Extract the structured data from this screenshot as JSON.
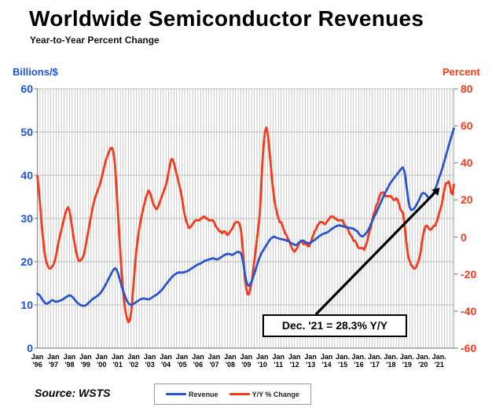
{
  "title": "Worldwide Semiconductor Revenues",
  "subtitle": "Year-to-Year Percent Change",
  "source": "Source: WSTS",
  "annotation": {
    "text": "Dec. '21 = 28.3% Y/Y"
  },
  "colors": {
    "revenue_blue": "#2b55cc",
    "yoy_red": "#f43b1c",
    "left_label_blue": "#1d53e0",
    "right_label_red": "#fa3a1e",
    "grid_gray": "#b3b3b3",
    "axis_gray": "#8a8a8a",
    "arrow_black": "#000000"
  },
  "legend": [
    {
      "label": "Revenue",
      "color": "#2b55cc"
    },
    {
      "label": "Y/Y % Change",
      "color": "#f43b1c"
    }
  ],
  "chart_data": {
    "type": "line",
    "title": "Worldwide Semiconductor Revenues",
    "subtitle": "Year-to-Year Percent Change",
    "x_interval": "monthly",
    "x_start": "1996-01",
    "x_end": "2021-12",
    "grid": "on",
    "legend_position": "bottom-center",
    "left_axis": {
      "label": "Billions/$",
      "min": 0,
      "max": 60,
      "ticks": [
        60,
        50,
        40,
        30,
        20,
        10,
        0
      ]
    },
    "right_axis": {
      "label": "Percent",
      "min": -60,
      "max": 80,
      "ticks": [
        80,
        60,
        40,
        20,
        0,
        -20,
        -40,
        -60
      ]
    },
    "x_tick_labels": [
      {
        "month": "Jan",
        "year": "'96"
      },
      {
        "month": "Jan",
        "year": "'97"
      },
      {
        "month": "Jan",
        "year": "'98"
      },
      {
        "month": "Jan",
        "year": "'99"
      },
      {
        "month": "Jan",
        "year": "'00"
      },
      {
        "month": "Jan",
        "year": "'01"
      },
      {
        "month": "Jan",
        "year": "'02"
      },
      {
        "month": "Jan",
        "year": "'03"
      },
      {
        "month": "Jan",
        "year": "'04"
      },
      {
        "month": "Jan",
        "year": "'05"
      },
      {
        "month": "Jan",
        "year": "'06"
      },
      {
        "month": "Jan",
        "year": "'07"
      },
      {
        "month": "Jan",
        "year": "'08"
      },
      {
        "month": "Jan",
        "year": "'09"
      },
      {
        "month": "Jan",
        "year": "'10"
      },
      {
        "month": "Jan",
        "year": "'11"
      },
      {
        "month": "Jan",
        "year": "'12"
      },
      {
        "month": "Jan",
        "year": "'13"
      },
      {
        "month": "Jan",
        "year": "'14"
      },
      {
        "month": "Jan.",
        "year": "'15"
      },
      {
        "month": "Jan.",
        "year": "'16"
      },
      {
        "month": "Jan.",
        "year": "'17"
      },
      {
        "month": "Jan.",
        "year": "'18"
      },
      {
        "month": "Jan.",
        "year": "'19"
      },
      {
        "month": "Jan.",
        "year": "'20"
      },
      {
        "month": "Jan.",
        "year": "'21"
      }
    ],
    "annotation": {
      "text": "Dec. '21 = 28.3% Y/Y",
      "points_to": {
        "x": "2021-12",
        "series": "Y/Y % Change",
        "value": 28.3
      }
    },
    "series": [
      {
        "name": "Revenue",
        "axis": "left",
        "units": "US$ billions per month (3-mo avg)",
        "color": "#2b55cc",
        "values": [
          12.6,
          12.4,
          12.1,
          11.6,
          11.1,
          10.7,
          10.4,
          10.3,
          10.4,
          10.6,
          10.9,
          11.1,
          11.0,
          10.8,
          10.7,
          10.8,
          10.9,
          11.0,
          11.1,
          11.3,
          11.5,
          11.7,
          11.9,
          12.1,
          12.2,
          12.1,
          11.9,
          11.6,
          11.2,
          10.8,
          10.5,
          10.2,
          10.0,
          9.9,
          9.8,
          9.8,
          9.9,
          10.1,
          10.4,
          10.7,
          11.0,
          11.3,
          11.5,
          11.7,
          11.9,
          12.1,
          12.4,
          12.7,
          13.1,
          13.6,
          14.1,
          14.7,
          15.3,
          15.9,
          16.5,
          17.1,
          17.7,
          18.2,
          18.5,
          18.3,
          17.5,
          16.5,
          15.4,
          14.3,
          13.3,
          12.4,
          11.6,
          10.9,
          10.4,
          10.1,
          10.0,
          10.1,
          10.3,
          10.5,
          10.7,
          10.9,
          11.1,
          11.3,
          11.4,
          11.5,
          11.5,
          11.4,
          11.3,
          11.3,
          11.4,
          11.6,
          11.8,
          12.0,
          12.2,
          12.4,
          12.6,
          12.9,
          13.2,
          13.5,
          13.9,
          14.3,
          14.7,
          15.1,
          15.5,
          15.9,
          16.3,
          16.6,
          16.9,
          17.1,
          17.3,
          17.5,
          17.5,
          17.5,
          17.5,
          17.5,
          17.6,
          17.7,
          17.8,
          18.0,
          18.2,
          18.4,
          18.6,
          18.8,
          19.0,
          19.2,
          19.4,
          19.5,
          19.6,
          19.8,
          20.0,
          20.2,
          20.3,
          20.4,
          20.5,
          20.6,
          20.7,
          20.8,
          20.7,
          20.6,
          20.5,
          20.6,
          20.8,
          21.0,
          21.2,
          21.4,
          21.6,
          21.7,
          21.8,
          21.8,
          21.7,
          21.6,
          21.6,
          21.8,
          22.0,
          22.2,
          22.3,
          22.2,
          21.9,
          21.0,
          19.3,
          17.2,
          15.5,
          14.6,
          14.4,
          14.8,
          15.5,
          16.3,
          17.2,
          18.2,
          19.2,
          20.2,
          21.0,
          21.8,
          22.3,
          22.8,
          23.3,
          23.8,
          24.3,
          24.8,
          25.2,
          25.5,
          25.7,
          25.8,
          25.6,
          25.5,
          25.4,
          25.3,
          25.2,
          25.2,
          25.1,
          25.0,
          24.9,
          24.8,
          24.6,
          24.4,
          24.2,
          24.1,
          23.9,
          23.8,
          24.0,
          24.3,
          24.6,
          24.8,
          24.9,
          24.8,
          24.6,
          24.4,
          24.2,
          24.3,
          24.4,
          24.6,
          24.8,
          25.0,
          25.3,
          25.5,
          25.8,
          26.0,
          26.2,
          26.4,
          26.5,
          26.6,
          26.7,
          26.9,
          27.1,
          27.4,
          27.6,
          27.8,
          28.0,
          28.2,
          28.3,
          28.4,
          28.4,
          28.3,
          28.2,
          28.1,
          28.0,
          28.0,
          27.9,
          27.8,
          27.8,
          27.7,
          27.6,
          27.4,
          27.2,
          27.0,
          26.5,
          26.1,
          25.9,
          25.9,
          26.1,
          26.4,
          26.8,
          27.3,
          27.9,
          28.6,
          29.3,
          30.1,
          30.7,
          31.3,
          32.0,
          32.7,
          33.4,
          34.1,
          34.8,
          35.5,
          36.1,
          36.7,
          37.3,
          37.9,
          38.4,
          38.8,
          39.2,
          39.6,
          40.0,
          40.4,
          40.8,
          41.2,
          41.6,
          41.8,
          41.0,
          39.2,
          36.5,
          34.2,
          32.6,
          32.0,
          32.0,
          32.2,
          32.6,
          33.1,
          33.7,
          34.3,
          35.0,
          35.7,
          35.9,
          35.8,
          35.6,
          35.2,
          34.9,
          34.8,
          35.0,
          35.4,
          36.0,
          36.7,
          37.5,
          38.5,
          39.5,
          40.3,
          41.3,
          42.3,
          43.4,
          44.5,
          45.6,
          46.7,
          47.8,
          48.8,
          49.8,
          50.8
        ]
      },
      {
        "name": "Y/Y % Change",
        "axis": "right",
        "units": "percent",
        "color": "#f43b1c",
        "values": [
          33,
          26,
          18,
          9,
          1,
          -6,
          -11,
          -14,
          -16,
          -17,
          -17,
          -16,
          -15,
          -13,
          -10,
          -6,
          -2,
          1,
          4,
          7,
          10,
          13,
          15,
          16,
          14,
          10,
          5,
          0,
          -4,
          -8,
          -11,
          -13,
          -13,
          -12,
          -11,
          -9,
          -5,
          -1,
          3,
          7,
          11,
          15,
          18,
          21,
          23,
          25,
          27,
          29,
          32,
          35,
          38,
          41,
          43,
          45,
          47,
          48,
          48,
          45,
          39,
          28,
          15,
          3,
          -9,
          -20,
          -29,
          -36,
          -41,
          -44,
          -46,
          -45,
          -41,
          -33,
          -24,
          -15,
          -7,
          -1,
          4,
          8,
          12,
          15,
          18,
          21,
          23,
          25,
          24,
          22,
          19,
          17,
          16,
          15,
          16,
          18,
          20,
          22,
          24,
          26,
          28,
          31,
          35,
          39,
          42,
          42,
          40,
          37,
          34,
          31,
          28,
          25,
          21,
          16,
          12,
          9,
          7,
          5,
          5,
          6,
          7,
          8,
          9,
          9,
          9,
          9,
          10,
          10,
          11,
          11,
          10,
          10,
          9,
          9,
          9,
          9,
          8,
          6,
          5,
          4,
          3,
          3,
          2,
          3,
          3,
          2,
          1,
          2,
          3,
          4,
          5,
          7,
          8,
          8,
          8,
          7,
          4,
          -3,
          -12,
          -22,
          -28,
          -31,
          -31,
          -28,
          -24,
          -19,
          -13,
          -7,
          -1,
          5,
          12,
          25,
          40,
          50,
          57,
          59,
          56,
          49,
          41,
          33,
          26,
          20,
          16,
          13,
          10,
          8,
          8,
          6,
          4,
          2,
          1,
          -1,
          -2,
          -4,
          -6,
          -7,
          -8,
          -7,
          -6,
          -4,
          -3,
          -2,
          -3,
          -4,
          -3,
          -4,
          -5,
          -5,
          -3,
          -1,
          1,
          3,
          4,
          6,
          7,
          8,
          8,
          8,
          7,
          7,
          8,
          9,
          10,
          11,
          11,
          11,
          10,
          10,
          9,
          9,
          9,
          9,
          9,
          7,
          6,
          5,
          4,
          2,
          1,
          0,
          -2,
          -2,
          -3,
          -5,
          -6,
          -6,
          -6,
          -6,
          -7,
          -5,
          -3,
          0,
          3,
          5,
          9,
          12,
          14,
          17,
          18,
          21,
          23,
          24,
          24,
          24,
          22,
          22,
          22,
          22,
          22,
          21,
          20,
          20,
          21,
          20,
          18,
          15,
          14,
          13,
          8,
          1,
          -6,
          -11,
          -13,
          -15,
          -16,
          -17,
          -17,
          -16,
          -14,
          -12,
          -9,
          -4,
          1,
          4,
          6,
          6,
          5,
          4,
          4,
          5,
          6,
          6,
          8,
          10,
          13,
          15,
          18,
          22,
          26,
          29,
          29,
          30,
          28,
          24,
          23,
          28.3
        ]
      }
    ]
  }
}
